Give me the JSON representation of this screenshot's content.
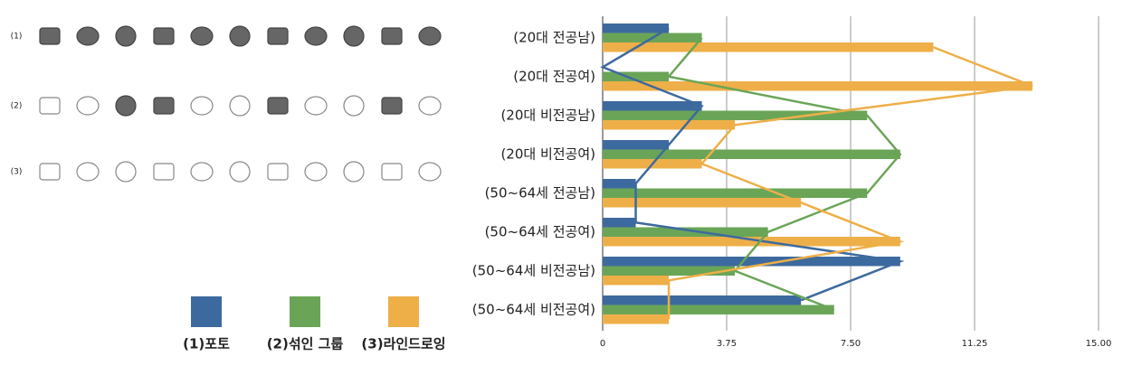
{
  "chart_data": {
    "type": "bar",
    "orientation": "horizontal",
    "icon_rows": [
      "(1)",
      "(2)",
      "(3)"
    ],
    "categories": [
      "(20대 전공남)",
      "(20대 전공여)",
      "(20대 비전공남)",
      "(20대 비전공여)",
      "(50~64세 전공남)",
      "(50~64세 전공여)",
      "(50~64세 비전공남)",
      "(50~64세 비전공여)"
    ],
    "series": [
      {
        "name": "(1)포토",
        "color": "#3d6a9e",
        "values": [
          2,
          0,
          3,
          2,
          1,
          1,
          9,
          6
        ]
      },
      {
        "name": "(2)섞인 그룹",
        "color": "#6aa557",
        "values": [
          3,
          2,
          8,
          9,
          8,
          5,
          4,
          7
        ]
      },
      {
        "name": "(3)라인드로잉",
        "color": "#eeaf48",
        "values": [
          10,
          13,
          4,
          3,
          6,
          9,
          2,
          2
        ]
      }
    ],
    "xlim": [
      0,
      15
    ],
    "xticks": [
      0,
      3.75,
      {
        "value": 7.5,
        "label": "7.50"
      },
      11.25,
      {
        "value": 15,
        "label": "15.00"
      }
    ],
    "grid": true
  }
}
